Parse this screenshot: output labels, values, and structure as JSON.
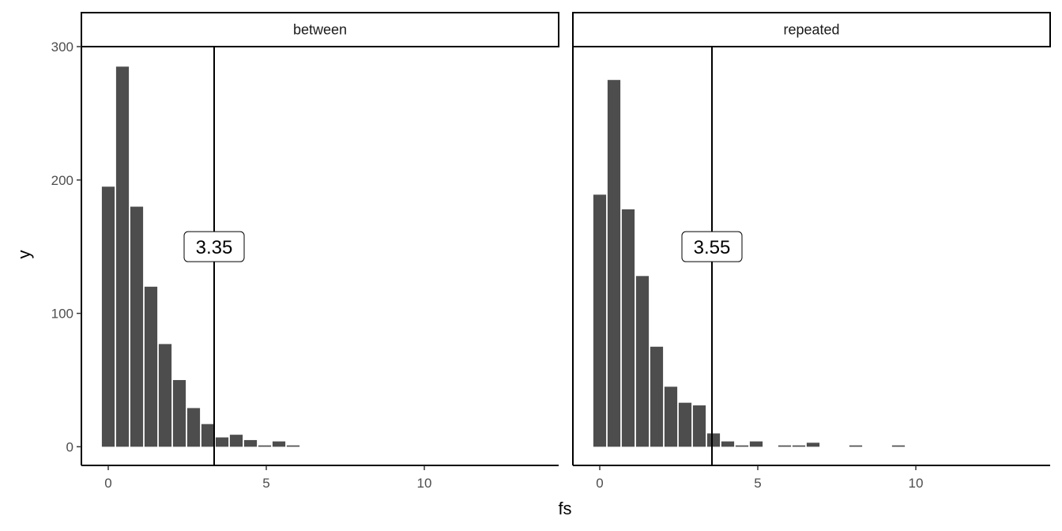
{
  "chart_data": {
    "type": "bar",
    "xlabel": "fs",
    "ylabel": "y",
    "xlim": [
      -0.85,
      14.25
    ],
    "ylim": [
      -14,
      300
    ],
    "x_ticks": [
      0,
      5,
      10
    ],
    "y_ticks": [
      0,
      100,
      200,
      300
    ],
    "grid": false,
    "bar_color": "#4d4d4d",
    "panels": [
      {
        "label": "between",
        "vline": 3.35,
        "vline_label": "3.35",
        "series": [
          {
            "x": [
              0.0,
              0.45,
              0.9,
              1.35,
              1.8,
              2.25,
              2.7,
              3.15,
              3.6,
              4.05,
              4.5,
              4.95,
              5.4,
              5.85
            ],
            "values": [
              195,
              285,
              180,
              120,
              77,
              50,
              29,
              17,
              7,
              9,
              5,
              1,
              4,
              1
            ]
          }
        ]
      },
      {
        "label": "repeated",
        "vline": 3.55,
        "vline_label": "3.55",
        "series": [
          {
            "x": [
              0.0,
              0.45,
              0.9,
              1.35,
              1.8,
              2.25,
              2.7,
              3.15,
              3.6,
              4.05,
              4.5,
              4.95,
              5.85,
              6.3,
              6.75,
              8.1,
              9.45
            ],
            "values": [
              189,
              275,
              178,
              128,
              75,
              45,
              33,
              31,
              10,
              4,
              1,
              4,
              1,
              1,
              3,
              1,
              1
            ]
          }
        ]
      }
    ]
  }
}
